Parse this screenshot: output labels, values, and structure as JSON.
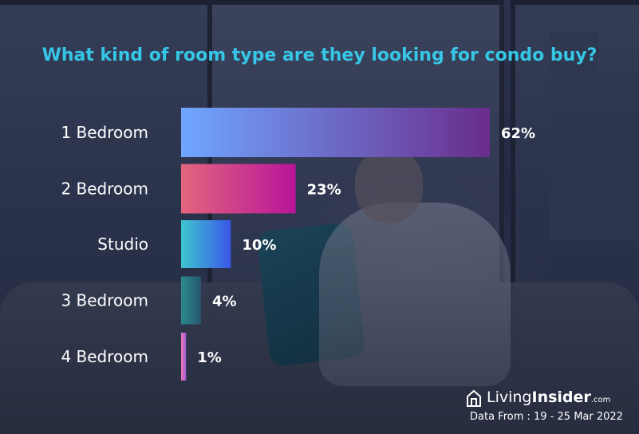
{
  "title": "What kind of room type are they looking for condo buy?",
  "colors": {
    "title": "#36c6e6",
    "bar_1_bedroom": [
      "#6fa6ff",
      "#6a2d8c"
    ],
    "bar_2_bedroom": [
      "#e2667e",
      "#b8149a"
    ],
    "bar_studio": [
      "#3ec6cf",
      "#3a56e8"
    ],
    "bar_3_bedroom": [
      "#2c8a8e",
      "#27556e"
    ],
    "bar_4_bedroom": [
      "#f07ab2",
      "#9a5ed8"
    ]
  },
  "chart_data": {
    "type": "bar",
    "orientation": "horizontal",
    "categories": [
      "1 Bedroom",
      "2 Bedroom",
      "Studio",
      "3 Bedroom",
      "4 Bedroom"
    ],
    "values": [
      62,
      23,
      10,
      4,
      1
    ],
    "value_labels": [
      "62%",
      "23%",
      "10%",
      "4%",
      "1%"
    ],
    "unit": "%",
    "title": "What kind of room type are they looking for condo buy?",
    "xlabel": "",
    "ylabel": "",
    "grid": false,
    "legend": false
  },
  "brand": {
    "logo_text_regular": "Living",
    "logo_text_bold": "Insider",
    "logo_suffix": ".com",
    "source": "Data From : 19 - 25 Mar 2022"
  },
  "icons": {
    "brand_logo": "house-logo-icon"
  }
}
